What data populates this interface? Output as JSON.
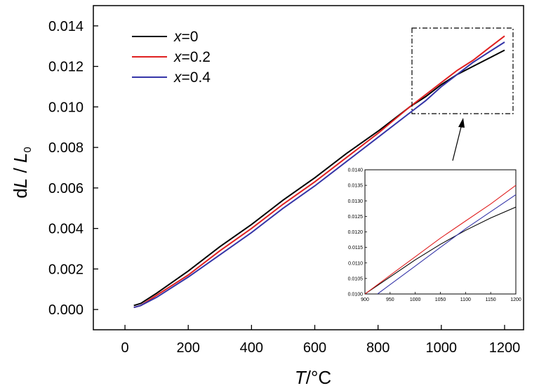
{
  "chart_data": [
    {
      "type": "line",
      "title": "",
      "xlabel": "T/°C",
      "xlabel_parts": {
        "var": "T",
        "unit": "/°C"
      },
      "ylabel": "dL / L0",
      "ylabel_parts": {
        "d": "d",
        "L": "L",
        "slash": " / ",
        "L0": "L",
        "sub": "0"
      },
      "xlim": [
        -100,
        1260
      ],
      "ylim": [
        -0.001,
        0.015
      ],
      "xticks": [
        0,
        200,
        400,
        600,
        800,
        1000,
        1200
      ],
      "xtick_labels": [
        "0",
        "200",
        "400",
        "600",
        "800",
        "1000",
        "1200"
      ],
      "yticks": [
        0.0,
        0.002,
        0.004,
        0.006,
        0.008,
        0.01,
        0.012,
        0.014
      ],
      "ytick_labels": [
        "0.000",
        "0.002",
        "0.004",
        "0.006",
        "0.008",
        "0.010",
        "0.012",
        "0.014"
      ],
      "grid": false,
      "legend_position": "top-left",
      "series": [
        {
          "name": "x=0",
          "name_var": "x",
          "name_val": "=0",
          "color": "#000000",
          "x": [
            28,
            50,
            100,
            200,
            300,
            400,
            500,
            600,
            700,
            800,
            900,
            950,
            1000,
            1050,
            1100,
            1150,
            1200
          ],
          "y": [
            0.0002,
            0.0003,
            0.0008,
            0.0019,
            0.0031,
            0.0042,
            0.0054,
            0.0065,
            0.0077,
            0.0088,
            0.01,
            0.0105,
            0.0111,
            0.0116,
            0.012,
            0.0124,
            0.0128
          ]
        },
        {
          "name": "x=0.2",
          "name_var": "x",
          "name_val": "=0.2",
          "color": "#e02020",
          "x": [
            28,
            50,
            100,
            200,
            300,
            400,
            500,
            600,
            700,
            800,
            900,
            950,
            1000,
            1050,
            1100,
            1150,
            1200
          ],
          "y": [
            0.0001,
            0.0002,
            0.0007,
            0.0017,
            0.0029,
            0.004,
            0.0052,
            0.0063,
            0.0075,
            0.0087,
            0.01,
            0.0106,
            0.0112,
            0.0118,
            0.0123,
            0.0129,
            0.0135
          ]
        },
        {
          "name": "x=0.4",
          "name_var": "x",
          "name_val": "=0.4",
          "color": "#3535a8",
          "x": [
            28,
            50,
            100,
            200,
            300,
            400,
            500,
            600,
            700,
            800,
            900,
            950,
            1000,
            1050,
            1100,
            1150,
            1200
          ],
          "y": [
            0.0001,
            0.0002,
            0.0006,
            0.0016,
            0.0027,
            0.0038,
            0.005,
            0.0061,
            0.0073,
            0.0085,
            0.0097,
            0.0103,
            0.011,
            0.0116,
            0.0122,
            0.0127,
            0.0132
          ]
        }
      ]
    },
    {
      "type": "line",
      "title": "",
      "xlabel": "",
      "ylabel": "",
      "xlim": [
        900,
        1200
      ],
      "ylim": [
        0.01,
        0.014
      ],
      "xticks": [
        900,
        950,
        1000,
        1050,
        1100,
        1150,
        1200
      ],
      "xtick_labels": [
        "900",
        "950",
        "1000",
        "1050",
        "1100",
        "1150",
        "1200"
      ],
      "yticks": [
        0.01,
        0.0105,
        0.011,
        0.0115,
        0.012,
        0.0125,
        0.013,
        0.0135,
        0.014
      ],
      "ytick_labels": [
        "0.0100",
        "0.0105",
        "0.0110",
        "0.0115",
        "0.0120",
        "0.0125",
        "0.0130",
        "0.0135",
        "0.0140"
      ],
      "grid": false,
      "series": [
        {
          "color": "#000000",
          "x": [
            900,
            950,
            1000,
            1050,
            1100,
            1150,
            1200
          ],
          "y": [
            0.01,
            0.01055,
            0.0111,
            0.0116,
            0.01205,
            0.01245,
            0.0128
          ]
        },
        {
          "color": "#e02020",
          "x": [
            900,
            950,
            1000,
            1050,
            1100,
            1150,
            1200
          ],
          "y": [
            0.01,
            0.0106,
            0.0112,
            0.0118,
            0.01235,
            0.0129,
            0.0135
          ]
        },
        {
          "color": "#3535a8",
          "x": [
            925,
            950,
            1000,
            1050,
            1100,
            1150,
            1200
          ],
          "y": [
            0.01,
            0.0103,
            0.0109,
            0.0115,
            0.0121,
            0.01265,
            0.0132
          ]
        }
      ]
    }
  ]
}
